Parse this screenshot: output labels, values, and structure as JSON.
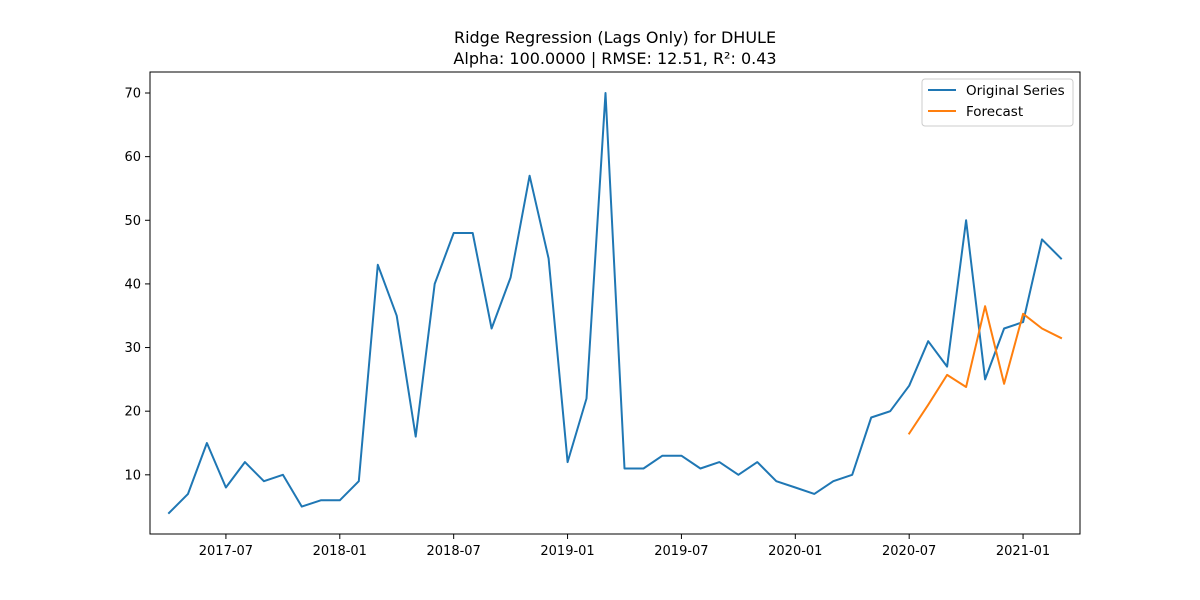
{
  "chart_data": {
    "type": "line",
    "title": "Ridge Regression (Lags Only) for DHULE",
    "subtitle": "Alpha: 100.0000 | RMSE: 12.51, R²: 0.43",
    "xlabel": "",
    "ylabel": "",
    "x_ticks": [
      "2017-07",
      "2018-01",
      "2018-07",
      "2019-01",
      "2019-07",
      "2020-01",
      "2020-07",
      "2021-01"
    ],
    "y_ticks": [
      10,
      20,
      30,
      40,
      50,
      60,
      70
    ],
    "ylim": [
      0.7,
      73.3
    ],
    "xlim": [
      "2017-03",
      "2021-04"
    ],
    "grid": false,
    "legend_position": "top-right",
    "series": [
      {
        "name": "Original Series",
        "color": "#1f77b4",
        "x": [
          "2017-04",
          "2017-05",
          "2017-06",
          "2017-07",
          "2017-08",
          "2017-09",
          "2017-10",
          "2017-11",
          "2017-12",
          "2018-01",
          "2018-02",
          "2018-03",
          "2018-04",
          "2018-05",
          "2018-06",
          "2018-07",
          "2018-08",
          "2018-09",
          "2018-10",
          "2018-11",
          "2018-12",
          "2019-01",
          "2019-02",
          "2019-03",
          "2019-04",
          "2019-05",
          "2019-06",
          "2019-07",
          "2019-08",
          "2019-09",
          "2019-10",
          "2019-11",
          "2019-12",
          "2020-01",
          "2020-02",
          "2020-03",
          "2020-04",
          "2020-05",
          "2020-06",
          "2020-07",
          "2020-08",
          "2020-09",
          "2020-10",
          "2020-11",
          "2020-12",
          "2021-01",
          "2021-02",
          "2021-03"
        ],
        "values": [
          4,
          7,
          15,
          8,
          12,
          9,
          10,
          5,
          6,
          6,
          9,
          43,
          35,
          16,
          40,
          48,
          48,
          33,
          41,
          57,
          44,
          12,
          22,
          70,
          11,
          11,
          13,
          13,
          11,
          12,
          10,
          12,
          9,
          8,
          7,
          9,
          10,
          19,
          20,
          24,
          31,
          27,
          50,
          25,
          33,
          34,
          47,
          44
        ]
      },
      {
        "name": "Forecast",
        "color": "#ff7f0e",
        "x": [
          "2020-07",
          "2020-08",
          "2020-09",
          "2020-10",
          "2020-11",
          "2020-12",
          "2021-01",
          "2021-02",
          "2021-03"
        ],
        "values": [
          16.5,
          21,
          25.7,
          23.8,
          36.5,
          24.3,
          35.3,
          33,
          31.5
        ]
      }
    ]
  }
}
